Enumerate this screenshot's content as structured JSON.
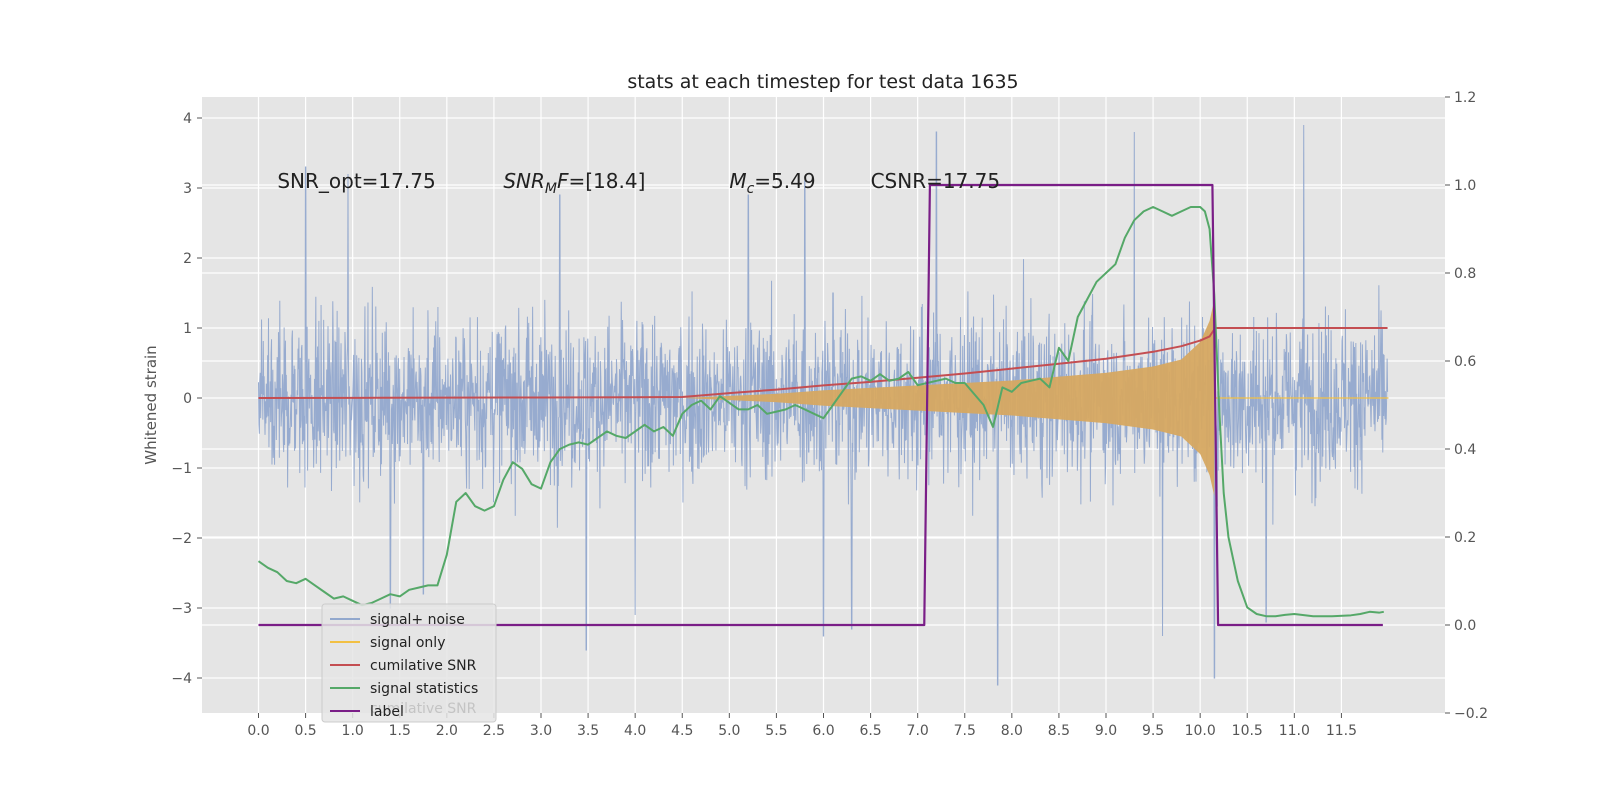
{
  "chart_data": {
    "type": "line",
    "title": "stats at each timestep for test data 1635",
    "ylabel": "Whitened strain",
    "xlabel": "",
    "xlim": [
      -0.6,
      12.6
    ],
    "ylim": [
      -4.5,
      4.3
    ],
    "y2lim": [
      -0.2,
      1.2
    ],
    "grid": true,
    "x_ticks": [
      0.0,
      0.5,
      1.0,
      1.5,
      2.0,
      2.5,
      3.0,
      3.5,
      4.0,
      4.5,
      5.0,
      5.5,
      6.0,
      6.5,
      7.0,
      7.5,
      8.0,
      8.5,
      9.0,
      9.5,
      10.0,
      10.5,
      11.0,
      11.5
    ],
    "x_tick_labels": [
      "0.0",
      "0.5",
      "1.0",
      "1.5",
      "2.0",
      "2.5",
      "3.0",
      "3.5",
      "4.0",
      "4.5",
      "5.0",
      "5.5",
      "6.0",
      "6.5",
      "7.0",
      "7.5",
      "8.0",
      "8.5",
      "9.0",
      "9.5",
      "10.0",
      "10.5",
      "11.0",
      "11.5"
    ],
    "y_ticks": [
      -4,
      -3,
      -2,
      -1,
      0,
      1,
      2,
      3,
      4
    ],
    "y_tick_labels": [
      "−4",
      "−3",
      "−2",
      "−1",
      "0",
      "1",
      "2",
      "3",
      "4"
    ],
    "y2_ticks": [
      -0.2,
      0.0,
      0.2,
      0.4,
      0.6,
      0.8,
      1.0,
      1.2
    ],
    "y2_tick_labels": [
      "−0.2",
      "0.0",
      "0.2",
      "0.4",
      "0.6",
      "0.8",
      "1.0",
      "1.2"
    ],
    "annotations": [
      {
        "text": "SNR_opt=17.75",
        "x": 0.2,
        "y": 3.1,
        "math": false
      },
      {
        "math": true,
        "base": "SNR",
        "sub": "M",
        "rest": "F=[18.4]",
        "x": 2.6,
        "y": 3.1
      },
      {
        "math": true,
        "base": "M",
        "sub": "c",
        "rest": "=5.49",
        "x": 5.0,
        "y": 3.1
      },
      {
        "text": "CSNR=17.75",
        "x": 6.5,
        "y": 3.1,
        "math": false
      }
    ],
    "legend": {
      "placement": "lower-left",
      "entries": [
        {
          "name": "signal+ noise",
          "color": "#92a8cd"
        },
        {
          "name": "signal only",
          "color": "#f2c043"
        },
        {
          "name": "cumilative SNR",
          "color": "#c44e52"
        },
        {
          "name": "signal statistics",
          "color": "#55a868"
        },
        {
          "name": "label",
          "color": "#7a1e87"
        }
      ],
      "ghost_text": "cumilative SNR"
    },
    "series": [
      {
        "name": "signal+ noise",
        "axis": "left",
        "kind": "noise",
        "color": "#92a8cd",
        "t_start": 0.0,
        "t_end": 11.99,
        "peaks": [
          [
            0.5,
            3.3
          ],
          [
            0.95,
            3.2
          ],
          [
            1.4,
            3.0
          ],
          [
            1.4,
            -3.0
          ],
          [
            1.75,
            -2.8
          ],
          [
            3.2,
            2.9
          ],
          [
            3.48,
            -3.6
          ],
          [
            4.0,
            3.2
          ],
          [
            4.0,
            -3.1
          ],
          [
            5.2,
            2.9
          ],
          [
            5.8,
            3.1
          ],
          [
            6.0,
            -3.4
          ],
          [
            6.1,
            1.5
          ],
          [
            6.3,
            -3.3
          ],
          [
            7.2,
            3.8
          ],
          [
            7.85,
            -4.1
          ],
          [
            9.3,
            3.8
          ],
          [
            9.6,
            -3.4
          ],
          [
            10.15,
            3.5
          ],
          [
            10.15,
            -4.0
          ],
          [
            10.7,
            -3.2
          ],
          [
            11.1,
            3.9
          ]
        ]
      },
      {
        "name": "signal only",
        "axis": "left",
        "kind": "chirp",
        "color": "#f2c043",
        "fill": "#d6a861",
        "t_start": 4.5,
        "t_merge": 10.15,
        "t_end": 12.0,
        "amp_points": [
          [
            4.5,
            0.0
          ],
          [
            5.5,
            0.06
          ],
          [
            6.0,
            0.11
          ],
          [
            7.0,
            0.18
          ],
          [
            8.0,
            0.25
          ],
          [
            9.0,
            0.36
          ],
          [
            9.5,
            0.45
          ],
          [
            9.8,
            0.55
          ],
          [
            10.0,
            0.8
          ],
          [
            10.1,
            1.1
          ],
          [
            10.15,
            1.4
          ]
        ]
      },
      {
        "name": "cumilative SNR",
        "axis": "left",
        "color": "#c44e52",
        "x": [
          0.0,
          1.0,
          2.0,
          3.0,
          4.0,
          4.5,
          5.0,
          5.5,
          6.0,
          6.5,
          7.0,
          7.5,
          8.0,
          8.5,
          9.0,
          9.5,
          9.8,
          10.0,
          10.1,
          10.16,
          10.2,
          11.0,
          11.99
        ],
        "values": [
          0.0,
          0.002,
          0.005,
          0.008,
          0.01,
          0.015,
          0.07,
          0.12,
          0.18,
          0.23,
          0.29,
          0.35,
          0.42,
          0.49,
          0.56,
          0.66,
          0.74,
          0.82,
          0.88,
          1.0,
          1.0,
          1.0,
          1.0
        ]
      },
      {
        "name": "signal statistics",
        "axis": "right",
        "color": "#55a868",
        "x": [
          0.0,
          0.1,
          0.2,
          0.3,
          0.4,
          0.5,
          0.6,
          0.7,
          0.8,
          0.9,
          1.0,
          1.1,
          1.2,
          1.3,
          1.4,
          1.5,
          1.6,
          1.7,
          1.8,
          1.9,
          2.0,
          2.1,
          2.2,
          2.3,
          2.4,
          2.5,
          2.6,
          2.7,
          2.8,
          2.9,
          3.0,
          3.1,
          3.2,
          3.3,
          3.4,
          3.5,
          3.6,
          3.7,
          3.8,
          3.9,
          4.0,
          4.1,
          4.2,
          4.3,
          4.4,
          4.5,
          4.6,
          4.7,
          4.8,
          4.9,
          5.0,
          5.1,
          5.2,
          5.3,
          5.4,
          5.5,
          5.6,
          5.7,
          5.8,
          5.9,
          6.0,
          6.1,
          6.2,
          6.3,
          6.4,
          6.5,
          6.6,
          6.7,
          6.8,
          6.9,
          7.0,
          7.1,
          7.2,
          7.3,
          7.4,
          7.5,
          7.6,
          7.7,
          7.8,
          7.9,
          8.0,
          8.1,
          8.2,
          8.3,
          8.4,
          8.5,
          8.6,
          8.7,
          8.8,
          8.9,
          9.0,
          9.1,
          9.2,
          9.3,
          9.4,
          9.5,
          9.6,
          9.7,
          9.8,
          9.9,
          10.0,
          10.05,
          10.1,
          10.15,
          10.2,
          10.25,
          10.3,
          10.4,
          10.5,
          10.6,
          10.7,
          10.8,
          10.9,
          11.0,
          11.2,
          11.4,
          11.6,
          11.7,
          11.8,
          11.9,
          11.95
        ],
        "values": [
          0.145,
          0.13,
          0.12,
          0.1,
          0.095,
          0.105,
          0.09,
          0.075,
          0.06,
          0.065,
          0.055,
          0.045,
          0.05,
          0.06,
          0.07,
          0.065,
          0.08,
          0.085,
          0.09,
          0.09,
          0.16,
          0.28,
          0.3,
          0.27,
          0.26,
          0.27,
          0.33,
          0.37,
          0.355,
          0.32,
          0.31,
          0.37,
          0.4,
          0.41,
          0.415,
          0.41,
          0.425,
          0.44,
          0.43,
          0.425,
          0.44,
          0.455,
          0.44,
          0.45,
          0.43,
          0.48,
          0.5,
          0.51,
          0.49,
          0.52,
          0.505,
          0.49,
          0.49,
          0.5,
          0.48,
          0.485,
          0.49,
          0.5,
          0.49,
          0.48,
          0.47,
          0.5,
          0.53,
          0.56,
          0.565,
          0.555,
          0.57,
          0.555,
          0.56,
          0.575,
          0.545,
          0.55,
          0.555,
          0.56,
          0.55,
          0.55,
          0.525,
          0.5,
          0.45,
          0.54,
          0.53,
          0.55,
          0.555,
          0.56,
          0.54,
          0.63,
          0.6,
          0.7,
          0.74,
          0.78,
          0.8,
          0.82,
          0.88,
          0.92,
          0.94,
          0.95,
          0.94,
          0.93,
          0.94,
          0.95,
          0.95,
          0.94,
          0.9,
          0.75,
          0.5,
          0.3,
          0.2,
          0.1,
          0.04,
          0.025,
          0.02,
          0.02,
          0.023,
          0.025,
          0.02,
          0.02,
          0.022,
          0.025,
          0.03,
          0.028,
          0.03
        ]
      },
      {
        "name": "label",
        "axis": "right",
        "color": "#7a1e87",
        "x": [
          0.0,
          7.07,
          7.13,
          10.13,
          10.19,
          11.94
        ],
        "values": [
          0.0,
          0.0,
          1.0,
          1.0,
          0.0,
          0.0
        ]
      }
    ]
  }
}
